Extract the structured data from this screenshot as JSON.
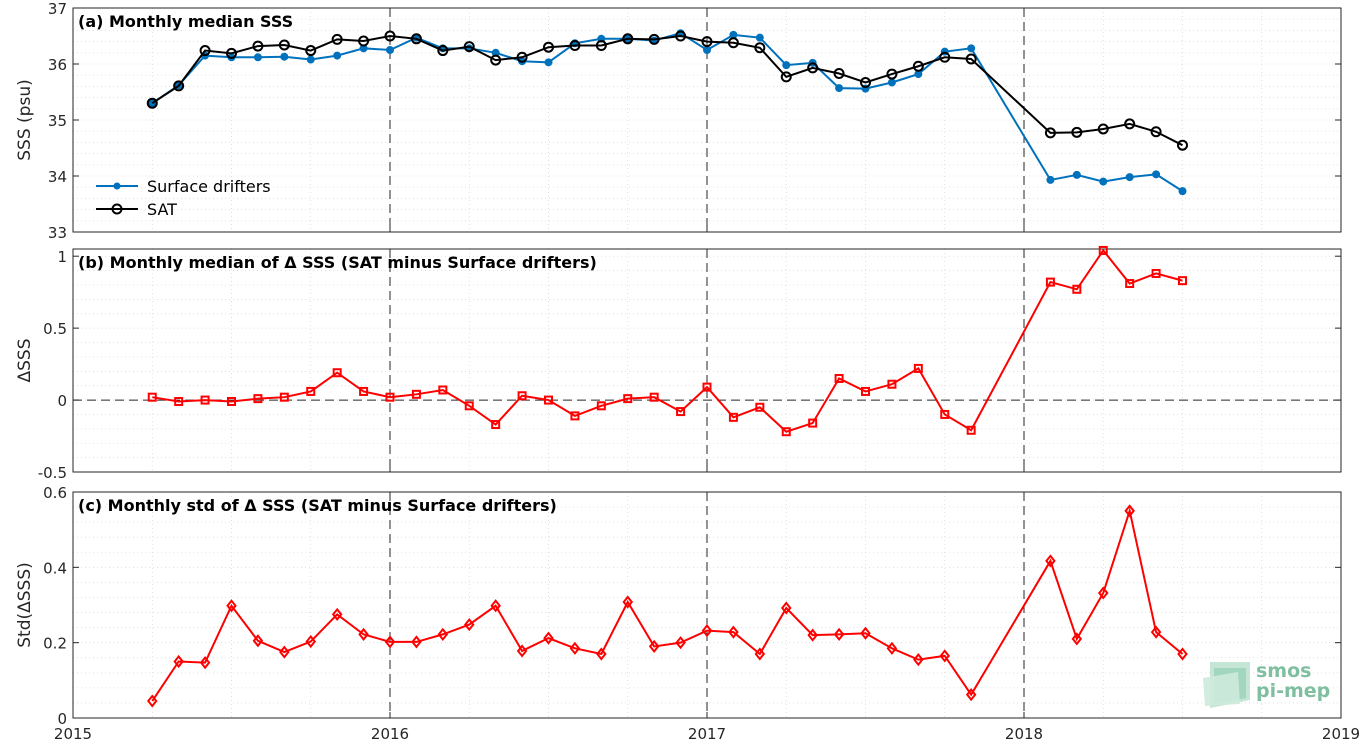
{
  "chart_data": [
    {
      "type": "line",
      "title": "(a) Monthly median SSS",
      "ylabel": "SSS (psu)",
      "xlim": [
        2015,
        2019
      ],
      "ylim": [
        33,
        37
      ],
      "yticks": [
        "33",
        "34",
        "35",
        "36",
        "37"
      ],
      "grid": true,
      "legend_position": "lower-left",
      "series": [
        {
          "name": "Surface drifters",
          "color": "#0072bd",
          "marker": "dot",
          "x": [
            "2015-04",
            "2015-05",
            "2015-06",
            "2015-07",
            "2015-08",
            "2015-09",
            "2015-10",
            "2015-11",
            "2015-12",
            "2016-01",
            "2016-02",
            "2016-03",
            "2016-04",
            "2016-05",
            "2016-06",
            "2016-07",
            "2016-08",
            "2016-09",
            "2016-10",
            "2016-11",
            "2016-12",
            "2017-01",
            "2017-02",
            "2017-03",
            "2017-04",
            "2017-05",
            "2017-06",
            "2017-07",
            "2017-08",
            "2017-09",
            "2017-10",
            "2017-11",
            "2018-02",
            "2018-03",
            "2018-04",
            "2018-05",
            "2018-06",
            "2018-07"
          ],
          "values": [
            35.3,
            35.62,
            36.15,
            36.12,
            36.12,
            36.13,
            36.08,
            36.15,
            36.28,
            36.25,
            36.47,
            36.28,
            36.28,
            36.2,
            36.05,
            36.03,
            36.37,
            36.45,
            36.45,
            36.42,
            36.55,
            36.25,
            36.52,
            36.47,
            35.98,
            36.02,
            35.57,
            35.56,
            35.67,
            35.82,
            36.22,
            36.28,
            33.93,
            34.02,
            33.9,
            33.98,
            34.03,
            33.73
          ]
        },
        {
          "name": "SAT",
          "color": "#000000",
          "marker": "circle",
          "x": [
            "2015-04",
            "2015-05",
            "2015-06",
            "2015-07",
            "2015-08",
            "2015-09",
            "2015-10",
            "2015-11",
            "2015-12",
            "2016-01",
            "2016-02",
            "2016-03",
            "2016-04",
            "2016-05",
            "2016-06",
            "2016-07",
            "2016-08",
            "2016-09",
            "2016-10",
            "2016-11",
            "2016-12",
            "2017-01",
            "2017-02",
            "2017-03",
            "2017-04",
            "2017-05",
            "2017-06",
            "2017-07",
            "2017-08",
            "2017-09",
            "2017-10",
            "2017-11",
            "2018-02",
            "2018-03",
            "2018-04",
            "2018-05",
            "2018-06",
            "2018-07"
          ],
          "values": [
            35.3,
            35.61,
            36.24,
            36.19,
            36.32,
            36.34,
            36.24,
            36.44,
            36.41,
            36.5,
            36.45,
            36.24,
            36.31,
            36.07,
            36.12,
            36.3,
            36.33,
            36.33,
            36.45,
            36.44,
            36.5,
            36.4,
            36.38,
            36.29,
            35.77,
            35.93,
            35.83,
            35.67,
            35.82,
            35.96,
            36.12,
            36.09,
            34.77,
            34.78,
            34.84,
            34.93,
            34.79,
            34.55
          ]
        }
      ]
    },
    {
      "type": "line",
      "title": "(b) Monthly median of Δ SSS (SAT minus Surface drifters)",
      "ylabel": "ΔSSS",
      "xlim": [
        2015,
        2019
      ],
      "ylim": [
        -0.5,
        1.05
      ],
      "yticks": [
        "-0.5",
        "0",
        "0.5",
        "1"
      ],
      "grid": true,
      "series": [
        {
          "color": "#ff0000",
          "marker": "square",
          "x": [
            "2015-04",
            "2015-05",
            "2015-06",
            "2015-07",
            "2015-08",
            "2015-09",
            "2015-10",
            "2015-11",
            "2015-12",
            "2016-01",
            "2016-02",
            "2016-03",
            "2016-04",
            "2016-05",
            "2016-06",
            "2016-07",
            "2016-08",
            "2016-09",
            "2016-10",
            "2016-11",
            "2016-12",
            "2017-01",
            "2017-02",
            "2017-03",
            "2017-04",
            "2017-05",
            "2017-06",
            "2017-07",
            "2017-08",
            "2017-09",
            "2017-10",
            "2017-11",
            "2018-02",
            "2018-03",
            "2018-04",
            "2018-05",
            "2018-06",
            "2018-07"
          ],
          "values": [
            0.02,
            -0.01,
            0.0,
            -0.01,
            0.01,
            0.02,
            0.06,
            0.19,
            0.06,
            0.02,
            0.04,
            0.07,
            -0.04,
            -0.17,
            0.03,
            0.0,
            -0.11,
            -0.04,
            0.01,
            0.02,
            -0.08,
            0.09,
            -0.12,
            -0.05,
            -0.22,
            -0.16,
            0.15,
            0.06,
            0.11,
            0.22,
            -0.1,
            -0.21,
            0.82,
            0.77,
            1.04,
            0.81,
            0.88,
            0.83
          ]
        }
      ]
    },
    {
      "type": "line",
      "title": "(c) Monthly std of Δ SSS (SAT minus Surface drifters)",
      "ylabel": "Std(ΔSSS)",
      "xlim": [
        2015,
        2019
      ],
      "ylim": [
        0,
        0.6
      ],
      "yticks": [
        "0",
        "0.2",
        "0.4",
        "0.6"
      ],
      "xticks": [
        "2015",
        "2016",
        "2017",
        "2018",
        "2019"
      ],
      "grid": true,
      "series": [
        {
          "color": "#ff0000",
          "marker": "diamond",
          "x": [
            "2015-04",
            "2015-05",
            "2015-06",
            "2015-07",
            "2015-08",
            "2015-09",
            "2015-10",
            "2015-11",
            "2015-12",
            "2016-01",
            "2016-02",
            "2016-03",
            "2016-04",
            "2016-05",
            "2016-06",
            "2016-07",
            "2016-08",
            "2016-09",
            "2016-10",
            "2016-11",
            "2016-12",
            "2017-01",
            "2017-02",
            "2017-03",
            "2017-04",
            "2017-05",
            "2017-06",
            "2017-07",
            "2017-08",
            "2017-09",
            "2017-10",
            "2017-11",
            "2018-02",
            "2018-03",
            "2018-04",
            "2018-05",
            "2018-06",
            "2018-07"
          ],
          "values": [
            0.045,
            0.15,
            0.147,
            0.298,
            0.205,
            0.175,
            0.203,
            0.275,
            0.222,
            0.202,
            0.202,
            0.222,
            0.248,
            0.298,
            0.178,
            0.212,
            0.185,
            0.17,
            0.308,
            0.19,
            0.2,
            0.232,
            0.228,
            0.17,
            0.292,
            0.22,
            0.222,
            0.225,
            0.185,
            0.155,
            0.165,
            0.062,
            0.417,
            0.21,
            0.332,
            0.55,
            0.228,
            0.17
          ]
        }
      ]
    }
  ],
  "logo": {
    "line1": "smos",
    "line2": "pi-mep"
  }
}
